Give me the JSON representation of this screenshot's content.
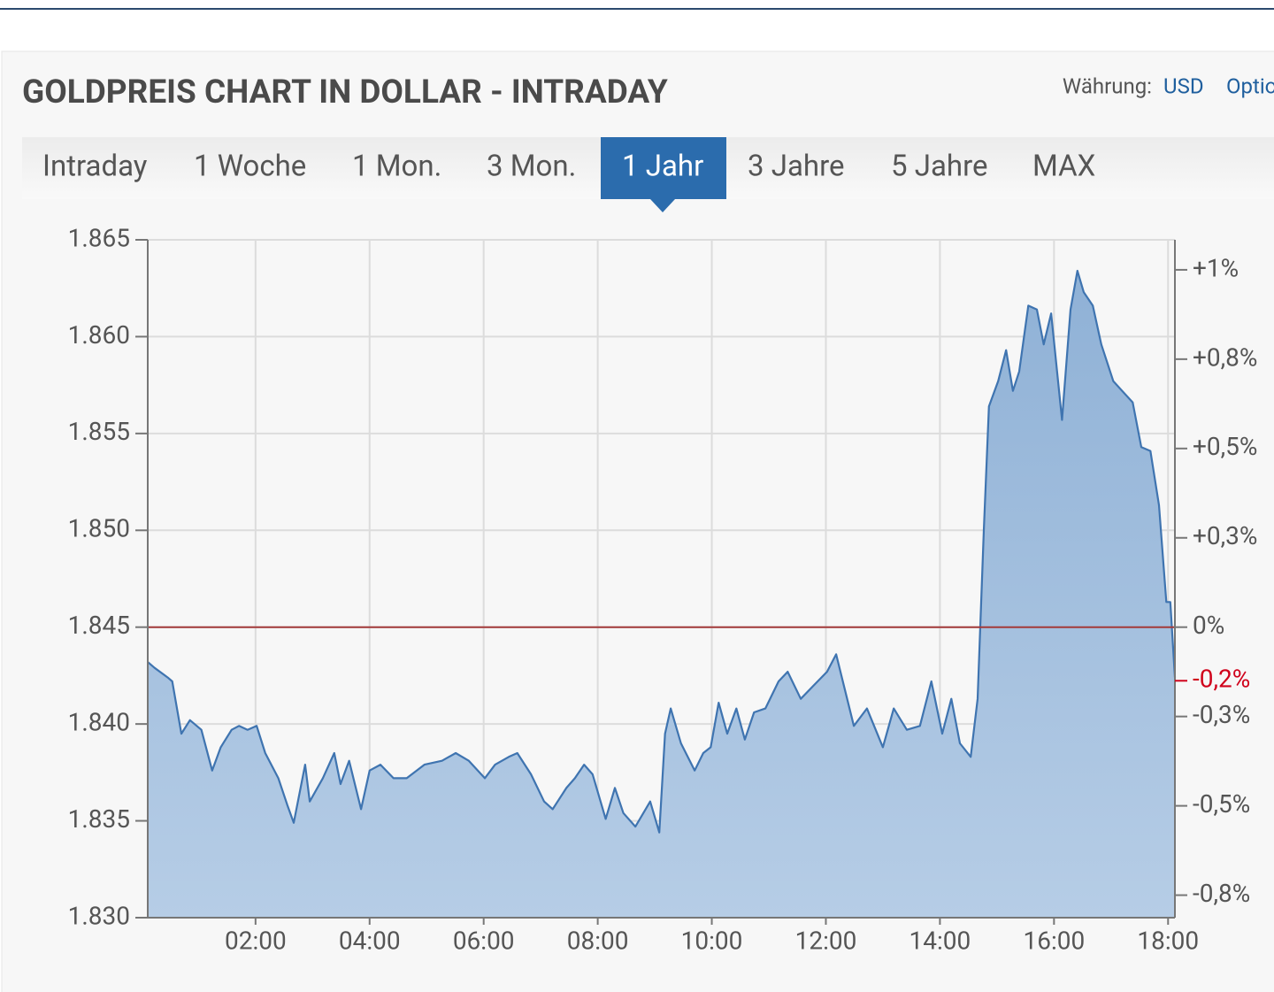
{
  "header": {
    "title": "GOLDPREIS CHART IN DOLLAR - INTRADAY",
    "currency_label": "Währung:",
    "currency": "USD",
    "options": "Optionen"
  },
  "tabs": [
    "Intraday",
    "1 Woche",
    "1 Mon.",
    "3 Mon.",
    "1 Jahr",
    "3 Jahre",
    "5 Jahre",
    "MAX"
  ],
  "active_tab": 4,
  "chart_data": {
    "type": "area",
    "color": "#3f74b0",
    "fill": "#a3c0df",
    "grid": true,
    "x": [
      0.11,
      0.23,
      0.46,
      0.54,
      0.7,
      0.85,
      1.05,
      1.24,
      1.39,
      1.58,
      1.71,
      1.86,
      2.02,
      2.17,
      2.4,
      2.56,
      2.67,
      2.87,
      2.95,
      3.18,
      3.38,
      3.49,
      3.64,
      3.85,
      4.0,
      4.19,
      4.42,
      4.65,
      4.96,
      5.27,
      5.51,
      5.74,
      6.02,
      6.2,
      6.44,
      6.59,
      6.83,
      7.06,
      7.21,
      7.45,
      7.6,
      7.76,
      7.91,
      8.14,
      8.3,
      8.45,
      8.66,
      8.92,
      9.08,
      9.18,
      9.28,
      9.46,
      9.7,
      9.85,
      9.98,
      10.12,
      10.27,
      10.43,
      10.58,
      10.74,
      10.94,
      11.17,
      11.33,
      11.56,
      11.79,
      12.02,
      12.18,
      12.33,
      12.49,
      12.72,
      13.0,
      13.19,
      13.42,
      13.65,
      13.85,
      14.04,
      14.2,
      14.35,
      14.54,
      14.66,
      14.77,
      14.86,
      15.02,
      15.16,
      15.28,
      15.39,
      15.55,
      15.7,
      15.82,
      15.95,
      16.14,
      16.29,
      16.41,
      16.52,
      16.68,
      16.83,
      17.04,
      17.38,
      17.53,
      17.69,
      17.84,
      17.97,
      18.04,
      18.12
    ],
    "values": [
      1843.2,
      1842.9,
      1842.4,
      1842.2,
      1839.5,
      1840.2,
      1839.7,
      1837.6,
      1838.8,
      1839.7,
      1839.9,
      1839.7,
      1839.9,
      1838.5,
      1837.2,
      1835.8,
      1834.9,
      1837.9,
      1836.0,
      1837.2,
      1838.5,
      1836.9,
      1838.1,
      1835.6,
      1837.6,
      1837.9,
      1837.2,
      1837.2,
      1837.9,
      1838.1,
      1838.5,
      1838.1,
      1837.2,
      1837.9,
      1838.3,
      1838.5,
      1837.4,
      1836.0,
      1835.6,
      1836.7,
      1837.2,
      1837.9,
      1837.4,
      1835.1,
      1836.7,
      1835.4,
      1834.7,
      1836.0,
      1834.4,
      1839.5,
      1840.8,
      1839.0,
      1837.6,
      1838.5,
      1838.8,
      1841.1,
      1839.5,
      1840.8,
      1839.2,
      1840.6,
      1840.8,
      1842.2,
      1842.7,
      1841.3,
      1842.0,
      1842.7,
      1843.6,
      1841.8,
      1839.9,
      1840.8,
      1838.8,
      1840.8,
      1839.7,
      1839.9,
      1842.2,
      1839.5,
      1841.3,
      1839.0,
      1838.3,
      1841.3,
      1850.0,
      1856.4,
      1857.7,
      1859.3,
      1857.2,
      1858.2,
      1861.6,
      1861.4,
      1859.6,
      1861.2,
      1855.7,
      1861.4,
      1863.4,
      1862.3,
      1861.6,
      1859.6,
      1857.7,
      1856.6,
      1854.3,
      1854.1,
      1851.3,
      1846.3,
      1846.3,
      1842.4
    ],
    "xlim": [
      0.11,
      18.12
    ],
    "xticks": [
      {
        "value": 2,
        "label": "02:00"
      },
      {
        "value": 4,
        "label": "04:00"
      },
      {
        "value": 6,
        "label": "06:00"
      },
      {
        "value": 8,
        "label": "08:00"
      },
      {
        "value": 10,
        "label": "10:00"
      },
      {
        "value": 12,
        "label": "12:00"
      },
      {
        "value": 14,
        "label": "14:00"
      },
      {
        "value": 16,
        "label": "16:00"
      },
      {
        "value": 18,
        "label": "18:00"
      }
    ],
    "ylim": [
      1830,
      1865
    ],
    "yticks": [
      {
        "value": 1830,
        "label": "1.830"
      },
      {
        "value": 1835,
        "label": "1.835"
      },
      {
        "value": 1840,
        "label": "1.840"
      },
      {
        "value": 1845,
        "label": "1.845"
      },
      {
        "value": 1850,
        "label": "1.850"
      },
      {
        "value": 1855,
        "label": "1.855"
      },
      {
        "value": 1860,
        "label": "1.860"
      },
      {
        "value": 1865,
        "label": "1.865"
      }
    ],
    "y2lim": [
      -0.813,
      1.084
    ],
    "y2ticks": [
      {
        "value": 1,
        "label": "+1%"
      },
      {
        "value": 0.75,
        "label": "+0,8%"
      },
      {
        "value": 0.5,
        "label": "+0,5%"
      },
      {
        "value": 0.25,
        "label": "+0,3%"
      },
      {
        "value": 0,
        "label": "0%"
      },
      {
        "value": -0.25,
        "label": "-0,3%"
      },
      {
        "value": -0.5,
        "label": "-0,5%"
      },
      {
        "value": -0.75,
        "label": "-0,8%"
      }
    ],
    "reference_line": {
      "value": 1845,
      "color": "#a33a3a"
    },
    "last_value_label": {
      "value": -0.15,
      "label": "-0,2%",
      "color": "#d0021b"
    }
  }
}
